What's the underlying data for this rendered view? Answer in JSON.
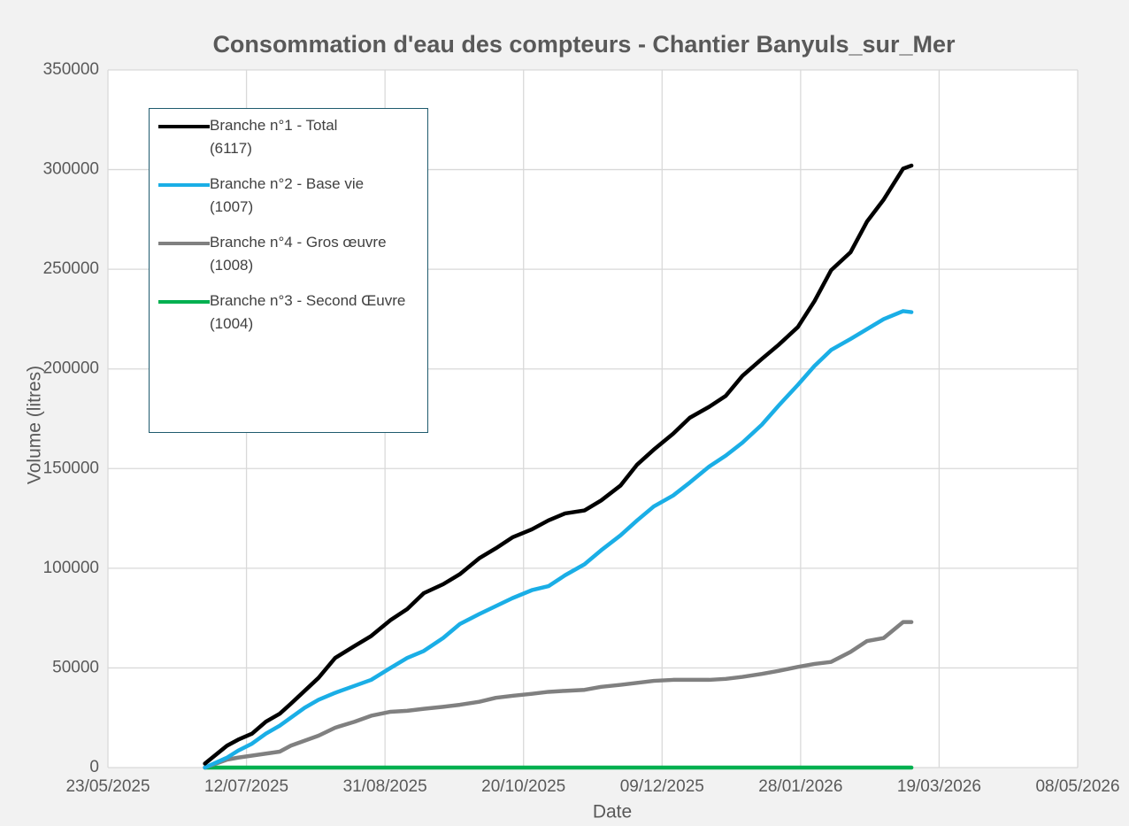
{
  "chart_data": {
    "type": "line",
    "title": "Consommation d'eau des compteurs - Chantier Banyuls_sur_Mer",
    "x_label": "Date",
    "y_label": "Volume (litres)",
    "x": [
      45835,
      45843,
      45847,
      45852,
      45857,
      45862,
      45866,
      45871,
      45876,
      45882,
      45889,
      45895,
      45902,
      45908,
      45914,
      45921,
      45927,
      45934,
      45940,
      45946,
      45953,
      45959,
      45965,
      45972,
      45978,
      45985,
      45991,
      45997,
      46004,
      46010,
      46017,
      46023,
      46029,
      46036,
      46042,
      46049,
      46055,
      46061,
      46068,
      46074,
      46080,
      46087,
      46090
    ],
    "series": [
      {
        "name": "Branche n°1 - Total (6117)",
        "color": "#000000",
        "values": [
          2000,
          11000,
          14000,
          17000,
          23000,
          27000,
          32000,
          38500,
          45000,
          55000,
          61000,
          66000,
          74000,
          79500,
          87500,
          92000,
          97000,
          105000,
          110000,
          115500,
          119500,
          124000,
          127500,
          129000,
          134000,
          141500,
          152000,
          159500,
          167500,
          175500,
          181000,
          186500,
          196500,
          205000,
          212000,
          221000,
          234000,
          249500,
          258500,
          274000,
          285000,
          300500,
          302000
        ]
      },
      {
        "name": "Branche n°2 - Base vie (1007)",
        "color": "#1aaee6",
        "values": [
          0,
          5000,
          8500,
          12000,
          17000,
          21000,
          25000,
          30000,
          34000,
          37500,
          41000,
          44000,
          50000,
          55000,
          58500,
          65000,
          72000,
          77000,
          81000,
          85000,
          89000,
          91000,
          96500,
          102000,
          109000,
          116500,
          124000,
          131000,
          136500,
          143000,
          151000,
          156500,
          163000,
          172000,
          181500,
          192000,
          201500,
          209500,
          215000,
          220000,
          225000,
          229000,
          228500
        ]
      },
      {
        "name": "Branche n°4 - Gros œuvre (1008)",
        "color": "#808080",
        "values": [
          0,
          4000,
          5000,
          6000,
          7000,
          8000,
          11000,
          13500,
          16000,
          20000,
          23000,
          26000,
          28000,
          28500,
          29500,
          30500,
          31500,
          33000,
          35000,
          36000,
          37000,
          38000,
          38500,
          39000,
          40500,
          41500,
          42500,
          43500,
          44000,
          44000,
          44000,
          44500,
          45500,
          47000,
          48500,
          50500,
          52000,
          53000,
          58000,
          63500,
          65000,
          73000,
          73000
        ]
      },
      {
        "name": "Branche n°3 - Second Œuvre (1004)",
        "color": "#00b050",
        "values": [
          0,
          0,
          0,
          0,
          0,
          0,
          0,
          0,
          0,
          0,
          0,
          0,
          0,
          0,
          0,
          0,
          0,
          0,
          0,
          0,
          0,
          0,
          0,
          0,
          0,
          0,
          0,
          0,
          0,
          0,
          0,
          0,
          0,
          0,
          0,
          0,
          0,
          0,
          0,
          0,
          0,
          0,
          0
        ]
      }
    ],
    "xlim": [
      45800,
      46150
    ],
    "xticks": [
      {
        "value": 45800,
        "label": "23/05/2025"
      },
      {
        "value": 45850,
        "label": "12/07/2025"
      },
      {
        "value": 45900,
        "label": "31/08/2025"
      },
      {
        "value": 45950,
        "label": "20/10/2025"
      },
      {
        "value": 46000,
        "label": "09/12/2025"
      },
      {
        "value": 46050,
        "label": "28/01/2026"
      },
      {
        "value": 46100,
        "label": "19/03/2026"
      },
      {
        "value": 46150,
        "label": "08/05/2026"
      }
    ],
    "ylim": [
      0,
      350000
    ],
    "yticks": [
      0,
      50000,
      100000,
      150000,
      200000,
      250000,
      300000,
      350000
    ],
    "grid": true,
    "legend": "top-left"
  }
}
